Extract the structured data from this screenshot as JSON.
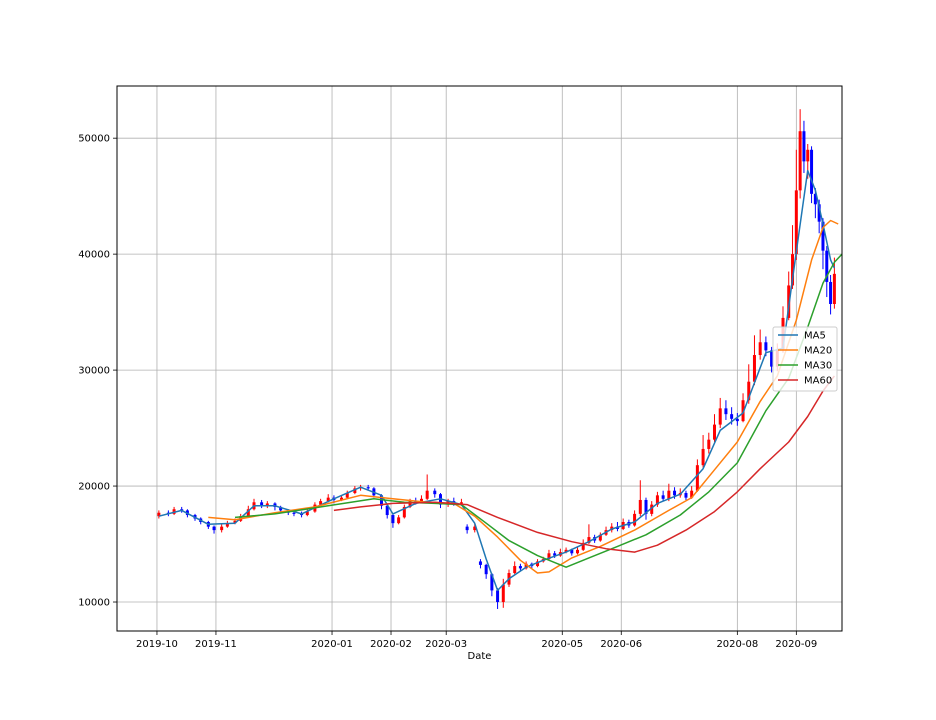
{
  "chart_data": {
    "type": "candlestick",
    "xlabel": "Date",
    "ylabel": "",
    "grid": true,
    "legend_position": "center-right",
    "x_range": [
      "2019-09-10",
      "2020-09-25"
    ],
    "ylim": [
      7500,
      54500
    ],
    "x_ticks": [
      "2019-10",
      "2019-11",
      "2020-01",
      "2020-02",
      "2020-03",
      "2020-05",
      "2020-06",
      "2020-08",
      "2020-09"
    ],
    "y_ticks": [
      10000,
      20000,
      30000,
      40000,
      50000
    ],
    "colors": {
      "up": "#ff0000",
      "down": "#0000ff",
      "grid": "#b0b0b0"
    },
    "candles": [
      [
        "2019-10-02",
        17400,
        17700,
        17900,
        17200
      ],
      [
        "2019-10-07",
        17700,
        17600,
        17900,
        17400
      ],
      [
        "2019-10-10",
        17600,
        18000,
        18200,
        17500
      ],
      [
        "2019-10-14",
        18000,
        17900,
        18200,
        17700
      ],
      [
        "2019-10-17",
        17900,
        17500,
        18000,
        17300
      ],
      [
        "2019-10-21",
        17500,
        17200,
        17600,
        17000
      ],
      [
        "2019-10-24",
        17200,
        16900,
        17300,
        16700
      ],
      [
        "2019-10-28",
        16900,
        16500,
        17000,
        16300
      ],
      [
        "2019-10-31",
        16500,
        16200,
        16600,
        15900
      ],
      [
        "2019-11-04",
        16200,
        16500,
        16700,
        16000
      ],
      [
        "2019-11-07",
        16500,
        16800,
        17000,
        16400
      ],
      [
        "2019-11-11",
        16800,
        17000,
        17200,
        16700
      ],
      [
        "2019-11-14",
        17000,
        17400,
        17600,
        16900
      ],
      [
        "2019-11-18",
        17400,
        18000,
        18300,
        17300
      ],
      [
        "2019-11-21",
        18000,
        18600,
        18900,
        17900
      ],
      [
        "2019-11-25",
        18600,
        18300,
        18800,
        18100
      ],
      [
        "2019-11-28",
        18300,
        18500,
        18700,
        18100
      ],
      [
        "2019-12-02",
        18500,
        18200,
        18600,
        17900
      ],
      [
        "2019-12-05",
        18200,
        17900,
        18300,
        17700
      ],
      [
        "2019-12-09",
        17900,
        17700,
        18000,
        17500
      ],
      [
        "2019-12-12",
        17700,
        17600,
        17900,
        17400
      ],
      [
        "2019-12-16",
        17600,
        17500,
        17800,
        17300
      ],
      [
        "2019-12-19",
        17500,
        17800,
        18000,
        17400
      ],
      [
        "2019-12-23",
        17800,
        18400,
        18600,
        17700
      ],
      [
        "2019-12-26",
        18400,
        18700,
        18900,
        18300
      ],
      [
        "2019-12-30",
        18700,
        19000,
        19300,
        18600
      ],
      [
        "2020-01-02",
        19000,
        18800,
        19200,
        18500
      ],
      [
        "2020-01-06",
        18800,
        19000,
        19200,
        18700
      ],
      [
        "2020-01-09",
        19000,
        19400,
        19600,
        18900
      ],
      [
        "2020-01-13",
        19400,
        19800,
        20000,
        19300
      ],
      [
        "2020-01-16",
        19800,
        19900,
        20100,
        19600
      ],
      [
        "2020-01-20",
        19900,
        19800,
        20100,
        19600
      ],
      [
        "2020-01-23",
        19800,
        19200,
        19900,
        19000
      ],
      [
        "2020-01-27",
        19200,
        18300,
        19300,
        18000
      ],
      [
        "2020-01-30",
        18300,
        17500,
        18400,
        17200
      ],
      [
        "2020-02-02",
        17500,
        16800,
        17600,
        16400
      ],
      [
        "2020-02-05",
        16800,
        17300,
        17500,
        16700
      ],
      [
        "2020-02-08",
        17300,
        18200,
        18400,
        17200
      ],
      [
        "2020-02-11",
        18200,
        18700,
        18900,
        18100
      ],
      [
        "2020-02-14",
        18700,
        18600,
        19000,
        18400
      ],
      [
        "2020-02-17",
        18600,
        18900,
        19200,
        18500
      ],
      [
        "2020-02-20",
        18900,
        19600,
        21000,
        18800
      ],
      [
        "2020-02-24",
        19600,
        19300,
        19800,
        19000
      ],
      [
        "2020-02-27",
        19300,
        18400,
        19400,
        18100
      ],
      [
        "2020-03-02",
        18400,
        18700,
        18900,
        18200
      ],
      [
        "2020-03-05",
        18700,
        18500,
        19000,
        18300
      ],
      [
        "2020-03-09",
        18500,
        18600,
        18900,
        18300
      ],
      [
        "2020-03-12",
        16500,
        16200,
        16700,
        15900
      ],
      [
        "2020-03-16",
        16200,
        16500,
        16800,
        16000
      ],
      [
        "2020-03-19",
        13500,
        13200,
        13700,
        12900
      ],
      [
        "2020-03-22",
        13200,
        12400,
        13300,
        12000
      ],
      [
        "2020-03-25",
        12400,
        11000,
        12500,
        10500
      ],
      [
        "2020-03-28",
        11000,
        10000,
        11200,
        9400
      ],
      [
        "2020-03-31",
        10000,
        11500,
        12000,
        9500
      ],
      [
        "2020-04-03",
        11500,
        12500,
        12800,
        11300
      ],
      [
        "2020-04-06",
        12500,
        13100,
        13500,
        12400
      ],
      [
        "2020-04-09",
        13100,
        12900,
        13300,
        12700
      ],
      [
        "2020-04-12",
        12900,
        13300,
        13500,
        12800
      ],
      [
        "2020-04-15",
        13300,
        13100,
        13400,
        12900
      ],
      [
        "2020-04-18",
        13100,
        13500,
        13700,
        13000
      ],
      [
        "2020-04-21",
        13500,
        13700,
        13900,
        13400
      ],
      [
        "2020-04-24",
        13700,
        14200,
        14500,
        13600
      ],
      [
        "2020-04-27",
        14200,
        14000,
        14400,
        13800
      ],
      [
        "2020-04-30",
        14000,
        14300,
        14600,
        13900
      ],
      [
        "2020-05-03",
        14300,
        14500,
        14700,
        14200
      ],
      [
        "2020-05-06",
        14500,
        14200,
        14600,
        14000
      ],
      [
        "2020-05-09",
        14200,
        14500,
        14700,
        14100
      ],
      [
        "2020-05-12",
        14500,
        15100,
        15400,
        14400
      ],
      [
        "2020-05-15",
        15100,
        15600,
        16700,
        15000
      ],
      [
        "2020-05-18",
        15600,
        15300,
        15800,
        15100
      ],
      [
        "2020-05-21",
        15300,
        15800,
        16000,
        15200
      ],
      [
        "2020-05-24",
        15800,
        16200,
        16500,
        15700
      ],
      [
        "2020-05-27",
        16200,
        16500,
        16800,
        16000
      ],
      [
        "2020-05-30",
        16500,
        16300,
        16900,
        16100
      ],
      [
        "2020-06-02",
        16300,
        16900,
        17200,
        16200
      ],
      [
        "2020-06-05",
        16900,
        16600,
        17100,
        16400
      ],
      [
        "2020-06-08",
        16600,
        17600,
        17900,
        16500
      ],
      [
        "2020-06-11",
        17600,
        18800,
        20500,
        17400
      ],
      [
        "2020-06-14",
        18800,
        17600,
        19000,
        17100
      ],
      [
        "2020-06-17",
        17600,
        18400,
        18700,
        17400
      ],
      [
        "2020-06-20",
        18400,
        19200,
        19500,
        18200
      ],
      [
        "2020-06-23",
        19200,
        18900,
        19600,
        18700
      ],
      [
        "2020-06-26",
        18900,
        19600,
        20200,
        18700
      ],
      [
        "2020-06-29",
        19600,
        19200,
        19900,
        18900
      ],
      [
        "2020-07-02",
        19200,
        19400,
        19800,
        19000
      ],
      [
        "2020-07-05",
        19400,
        19000,
        19600,
        18800
      ],
      [
        "2020-07-08",
        19000,
        19600,
        20000,
        18900
      ],
      [
        "2020-07-11",
        19600,
        21800,
        22300,
        19500
      ],
      [
        "2020-07-14",
        21800,
        23200,
        24400,
        21600
      ],
      [
        "2020-07-17",
        23200,
        24000,
        24600,
        22800
      ],
      [
        "2020-07-20",
        24000,
        25300,
        26200,
        23800
      ],
      [
        "2020-07-23",
        25300,
        26700,
        27600,
        25000
      ],
      [
        "2020-07-26",
        26700,
        26200,
        27400,
        25700
      ],
      [
        "2020-07-29",
        26200,
        25800,
        26800,
        25300
      ],
      [
        "2020-08-01",
        25800,
        25600,
        26300,
        25200
      ],
      [
        "2020-08-04",
        25600,
        27400,
        28000,
        25500
      ],
      [
        "2020-08-07",
        27400,
        29000,
        30500,
        27100
      ],
      [
        "2020-08-10",
        29000,
        31300,
        33000,
        28700
      ],
      [
        "2020-08-13",
        31300,
        32400,
        33500,
        30900
      ],
      [
        "2020-08-16",
        32400,
        31700,
        32900,
        31200
      ],
      [
        "2020-08-19",
        31700,
        30300,
        32000,
        29800
      ],
      [
        "2020-08-22",
        30300,
        31800,
        32300,
        29900
      ],
      [
        "2020-08-25",
        31800,
        34500,
        35500,
        31500
      ],
      [
        "2020-08-28",
        34500,
        37300,
        38500,
        34300
      ],
      [
        "2020-08-30",
        37300,
        40000,
        42500,
        37000
      ],
      [
        "2020-09-01",
        40000,
        45500,
        49000,
        39500
      ],
      [
        "2020-09-03",
        45500,
        50600,
        52500,
        44800
      ],
      [
        "2020-09-05",
        50600,
        48000,
        51500,
        47000
      ],
      [
        "2020-09-07",
        48000,
        49000,
        49500,
        46500
      ],
      [
        "2020-09-09",
        49000,
        45200,
        49300,
        44400
      ],
      [
        "2020-09-11",
        45200,
        44300,
        45700,
        43100
      ],
      [
        "2020-09-13",
        44300,
        42800,
        44700,
        41800
      ],
      [
        "2020-09-15",
        42800,
        40300,
        43100,
        38700
      ],
      [
        "2020-09-17",
        40300,
        37600,
        40700,
        36300
      ],
      [
        "2020-09-19",
        37600,
        35700,
        38200,
        34800
      ],
      [
        "2020-09-21",
        35700,
        38300,
        39700,
        35300
      ]
    ],
    "series": [
      {
        "name": "MA5",
        "color": "#1f77b4",
        "points": [
          [
            "2019-10-02",
            17400
          ],
          [
            "2019-10-14",
            17900
          ],
          [
            "2019-10-28",
            16700
          ],
          [
            "2019-11-11",
            16800
          ],
          [
            "2019-11-21",
            18300
          ],
          [
            "2019-12-02",
            18300
          ],
          [
            "2019-12-16",
            17600
          ],
          [
            "2020-01-02",
            18900
          ],
          [
            "2020-01-16",
            19900
          ],
          [
            "2020-01-27",
            19200
          ],
          [
            "2020-02-02",
            17600
          ],
          [
            "2020-02-14",
            18500
          ],
          [
            "2020-02-27",
            18900
          ],
          [
            "2020-03-09",
            18400
          ],
          [
            "2020-03-16",
            16800
          ],
          [
            "2020-03-22",
            13700
          ],
          [
            "2020-03-28",
            11000
          ],
          [
            "2020-04-03",
            12000
          ],
          [
            "2020-04-12",
            13000
          ],
          [
            "2020-04-21",
            13600
          ],
          [
            "2020-05-03",
            14300
          ],
          [
            "2020-05-15",
            15200
          ],
          [
            "2020-05-27",
            16300
          ],
          [
            "2020-06-08",
            16900
          ],
          [
            "2020-06-20",
            18500
          ],
          [
            "2020-07-02",
            19300
          ],
          [
            "2020-07-14",
            21500
          ],
          [
            "2020-07-23",
            24800
          ],
          [
            "2020-08-04",
            26300
          ],
          [
            "2020-08-16",
            31500
          ],
          [
            "2020-08-25",
            31900
          ],
          [
            "2020-09-01",
            40200
          ],
          [
            "2020-09-07",
            47200
          ],
          [
            "2020-09-11",
            45500
          ],
          [
            "2020-09-15",
            42600
          ],
          [
            "2020-09-19",
            39500
          ],
          [
            "2020-09-21",
            38800
          ]
        ]
      },
      {
        "name": "MA20",
        "color": "#ff7f0e",
        "points": [
          [
            "2019-10-28",
            17300
          ],
          [
            "2019-11-11",
            17100
          ],
          [
            "2019-12-02",
            17700
          ],
          [
            "2019-12-23",
            18200
          ],
          [
            "2020-01-16",
            19200
          ],
          [
            "2020-02-02",
            18900
          ],
          [
            "2020-02-20",
            18600
          ],
          [
            "2020-03-05",
            18500
          ],
          [
            "2020-03-16",
            17400
          ],
          [
            "2020-03-28",
            15600
          ],
          [
            "2020-04-09",
            13600
          ],
          [
            "2020-04-18",
            12500
          ],
          [
            "2020-04-24",
            12600
          ],
          [
            "2020-05-06",
            13800
          ],
          [
            "2020-05-21",
            14800
          ],
          [
            "2020-06-08",
            16200
          ],
          [
            "2020-06-26",
            17900
          ],
          [
            "2020-07-08",
            19000
          ],
          [
            "2020-07-20",
            21400
          ],
          [
            "2020-08-01",
            23800
          ],
          [
            "2020-08-13",
            27300
          ],
          [
            "2020-08-22",
            29500
          ],
          [
            "2020-09-01",
            34300
          ],
          [
            "2020-09-09",
            39500
          ],
          [
            "2020-09-15",
            42300
          ],
          [
            "2020-09-19",
            42900
          ],
          [
            "2020-09-23",
            42600
          ]
        ]
      },
      {
        "name": "MA30",
        "color": "#2ca02c",
        "points": [
          [
            "2019-11-11",
            17300
          ],
          [
            "2019-12-02",
            17600
          ],
          [
            "2019-12-30",
            18300
          ],
          [
            "2020-01-23",
            18900
          ],
          [
            "2020-02-08",
            18600
          ],
          [
            "2020-02-24",
            18500
          ],
          [
            "2020-03-09",
            18400
          ],
          [
            "2020-03-22",
            16800
          ],
          [
            "2020-04-03",
            15300
          ],
          [
            "2020-04-18",
            14000
          ],
          [
            "2020-05-03",
            13000
          ],
          [
            "2020-05-15",
            13800
          ],
          [
            "2020-05-30",
            14800
          ],
          [
            "2020-06-14",
            15800
          ],
          [
            "2020-07-02",
            17500
          ],
          [
            "2020-07-17",
            19500
          ],
          [
            "2020-08-01",
            22000
          ],
          [
            "2020-08-16",
            26500
          ],
          [
            "2020-08-28",
            29300
          ],
          [
            "2020-09-07",
            33700
          ],
          [
            "2020-09-15",
            37500
          ],
          [
            "2020-09-21",
            39300
          ],
          [
            "2020-09-25",
            40000
          ]
        ]
      },
      {
        "name": "MA60",
        "color": "#d62728",
        "points": [
          [
            "2020-01-02",
            17900
          ],
          [
            "2020-01-16",
            18200
          ],
          [
            "2020-02-02",
            18500
          ],
          [
            "2020-02-24",
            18600
          ],
          [
            "2020-03-12",
            18400
          ],
          [
            "2020-03-28",
            17300
          ],
          [
            "2020-04-18",
            16000
          ],
          [
            "2020-05-06",
            15200
          ],
          [
            "2020-05-24",
            14600
          ],
          [
            "2020-06-08",
            14300
          ],
          [
            "2020-06-20",
            14900
          ],
          [
            "2020-07-05",
            16200
          ],
          [
            "2020-07-20",
            17800
          ],
          [
            "2020-08-01",
            19500
          ],
          [
            "2020-08-13",
            21500
          ],
          [
            "2020-08-28",
            23800
          ],
          [
            "2020-09-07",
            26000
          ],
          [
            "2020-09-15",
            28200
          ],
          [
            "2020-09-21",
            29500
          ]
        ]
      }
    ]
  }
}
